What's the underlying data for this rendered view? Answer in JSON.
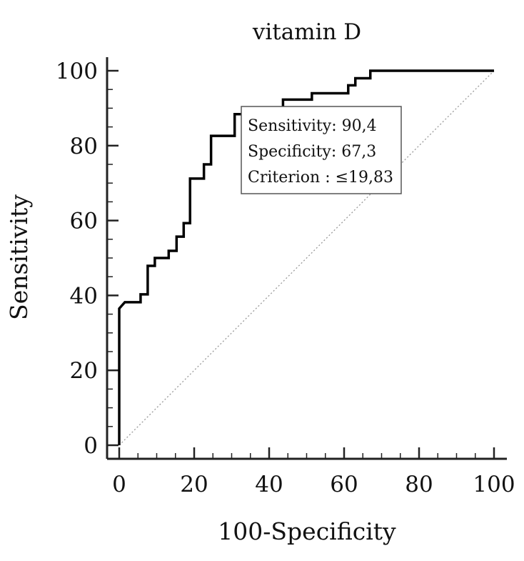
{
  "chart_data": {
    "type": "line",
    "title": "vitamin D",
    "xlabel": "100-Specificity",
    "ylabel": "Sensitivity",
    "xlim": [
      0,
      100
    ],
    "ylim": [
      0,
      100
    ],
    "x_ticks": [
      0,
      20,
      40,
      60,
      80,
      100
    ],
    "y_ticks": [
      0,
      20,
      40,
      60,
      80,
      100
    ],
    "x_tick_labels": [
      "0",
      "20",
      "40",
      "60",
      "80",
      "100"
    ],
    "y_tick_labels": [
      "0",
      "20",
      "40",
      "60",
      "80",
      "100"
    ],
    "grid": false,
    "series": [
      {
        "name": "",
        "style": "step",
        "color": "#000000",
        "points": [
          [
            0,
            0
          ],
          [
            0,
            36.5
          ],
          [
            1.5,
            38.2
          ],
          [
            5.7,
            38.2
          ],
          [
            5.7,
            40.3
          ],
          [
            7.6,
            40.3
          ],
          [
            7.6,
            47.9
          ],
          [
            9.5,
            47.9
          ],
          [
            9.5,
            50.0
          ],
          [
            13.2,
            50.0
          ],
          [
            13.2,
            51.9
          ],
          [
            15.3,
            51.9
          ],
          [
            15.3,
            55.7
          ],
          [
            17.2,
            55.7
          ],
          [
            17.2,
            59.3
          ],
          [
            18.9,
            59.3
          ],
          [
            18.9,
            71.2
          ],
          [
            22.6,
            71.2
          ],
          [
            22.6,
            75.0
          ],
          [
            24.5,
            75.0
          ],
          [
            24.5,
            82.6
          ],
          [
            30.8,
            82.6
          ],
          [
            30.8,
            88.4
          ],
          [
            43.7,
            88.4
          ],
          [
            43.7,
            92.3
          ],
          [
            51.4,
            92.3
          ],
          [
            51.4,
            94.0
          ],
          [
            61.1,
            94.0
          ],
          [
            61.1,
            96.1
          ],
          [
            63.0,
            96.1
          ],
          [
            63.0,
            98.0
          ],
          [
            67.0,
            98.0
          ],
          [
            67.0,
            100.0
          ],
          [
            100.0,
            100.0
          ]
        ]
      },
      {
        "name": "",
        "style": "dotted",
        "color": "#999999",
        "points": [
          [
            0,
            0
          ],
          [
            100,
            100
          ]
        ]
      }
    ],
    "annotation": {
      "lines": [
        "Sensitivity: 90,4",
        "Specificity: 67,3",
        "Criterion : ≤19,83"
      ],
      "anchor": [
        30.8,
        88.4
      ]
    }
  }
}
